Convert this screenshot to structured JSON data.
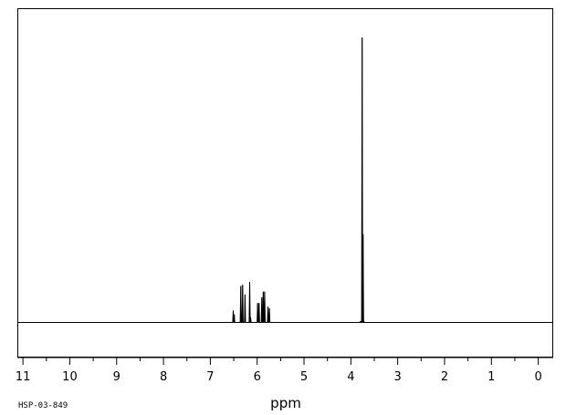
{
  "chart_data": {
    "type": "line",
    "title": "",
    "xlabel": "ppm",
    "ylabel": "",
    "xlim": [
      11.1,
      -0.3
    ],
    "ylim": [
      -0.12,
      1.1
    ],
    "x_reversed": true,
    "x_ticks": [
      11,
      10,
      9,
      8,
      7,
      6,
      5,
      4,
      3,
      2,
      1,
      0
    ],
    "x_minor_step": 0.5,
    "grid": false,
    "legend": "none",
    "spectrum_code": "HSP-03-849",
    "line_color": "#000000",
    "peaks": [
      {
        "x": 6.51,
        "y": 0.042
      },
      {
        "x": 6.49,
        "y": 0.028
      },
      {
        "x": 6.35,
        "y": 0.128
      },
      {
        "x": 6.31,
        "y": 0.132
      },
      {
        "x": 6.26,
        "y": 0.098
      },
      {
        "x": 6.16,
        "y": 0.142
      },
      {
        "x": 6.14,
        "y": 0.018
      },
      {
        "x": 5.99,
        "y": 0.068
      },
      {
        "x": 5.96,
        "y": 0.068
      },
      {
        "x": 5.9,
        "y": 0.088
      },
      {
        "x": 5.87,
        "y": 0.108
      },
      {
        "x": 5.84,
        "y": 0.108
      },
      {
        "x": 5.77,
        "y": 0.056
      },
      {
        "x": 5.74,
        "y": 0.05
      },
      {
        "x": 3.76,
        "y": 1.0
      },
      {
        "x": 3.74,
        "y": 0.31
      }
    ]
  }
}
